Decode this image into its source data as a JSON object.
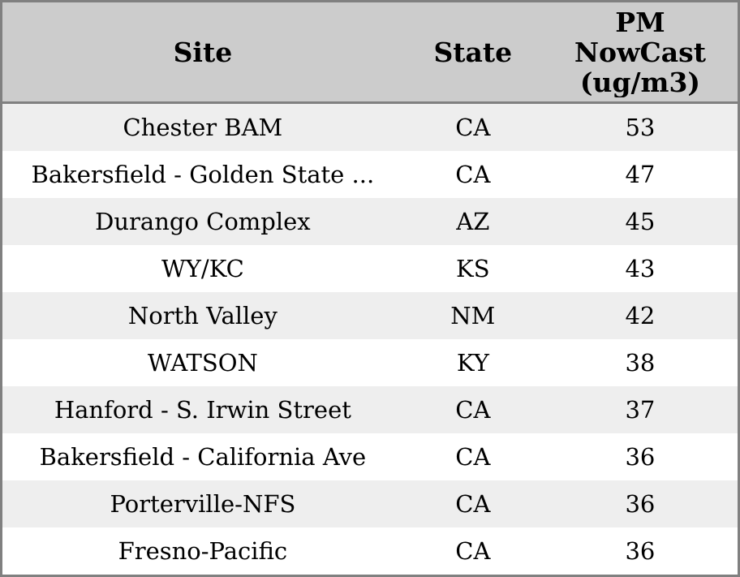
{
  "table": {
    "title": "PM NowCast site readings table",
    "columns": [
      {
        "label": "Site"
      },
      {
        "label": "State"
      },
      {
        "label": "PM NowCast (ug/m3)",
        "label_lines": [
          "PM",
          "NowCast",
          "(ug/m3)"
        ]
      }
    ],
    "rows": [
      {
        "site": "Chester BAM",
        "state": "CA",
        "pm_nowcast": 53
      },
      {
        "site": "Bakersfield - Golden State ...",
        "state": "CA",
        "pm_nowcast": 47
      },
      {
        "site": "Durango Complex",
        "state": "AZ",
        "pm_nowcast": 45
      },
      {
        "site": "WY/KC",
        "state": "KS",
        "pm_nowcast": 43
      },
      {
        "site": "North Valley",
        "state": "NM",
        "pm_nowcast": 42
      },
      {
        "site": "WATSON",
        "state": "KY",
        "pm_nowcast": 38
      },
      {
        "site": "Hanford - S. Irwin Street",
        "state": "CA",
        "pm_nowcast": 37
      },
      {
        "site": "Bakersfield - California Ave",
        "state": "CA",
        "pm_nowcast": 36
      },
      {
        "site": "Porterville-NFS",
        "state": "CA",
        "pm_nowcast": 36
      },
      {
        "site": "Fresno-Pacific",
        "state": "CA",
        "pm_nowcast": 36
      }
    ],
    "colors": {
      "header_bg": "#cccccc",
      "border": "#808080",
      "stripe_bg": "#eeeeee",
      "row_bg": "#ffffff",
      "text": "#000000"
    }
  }
}
